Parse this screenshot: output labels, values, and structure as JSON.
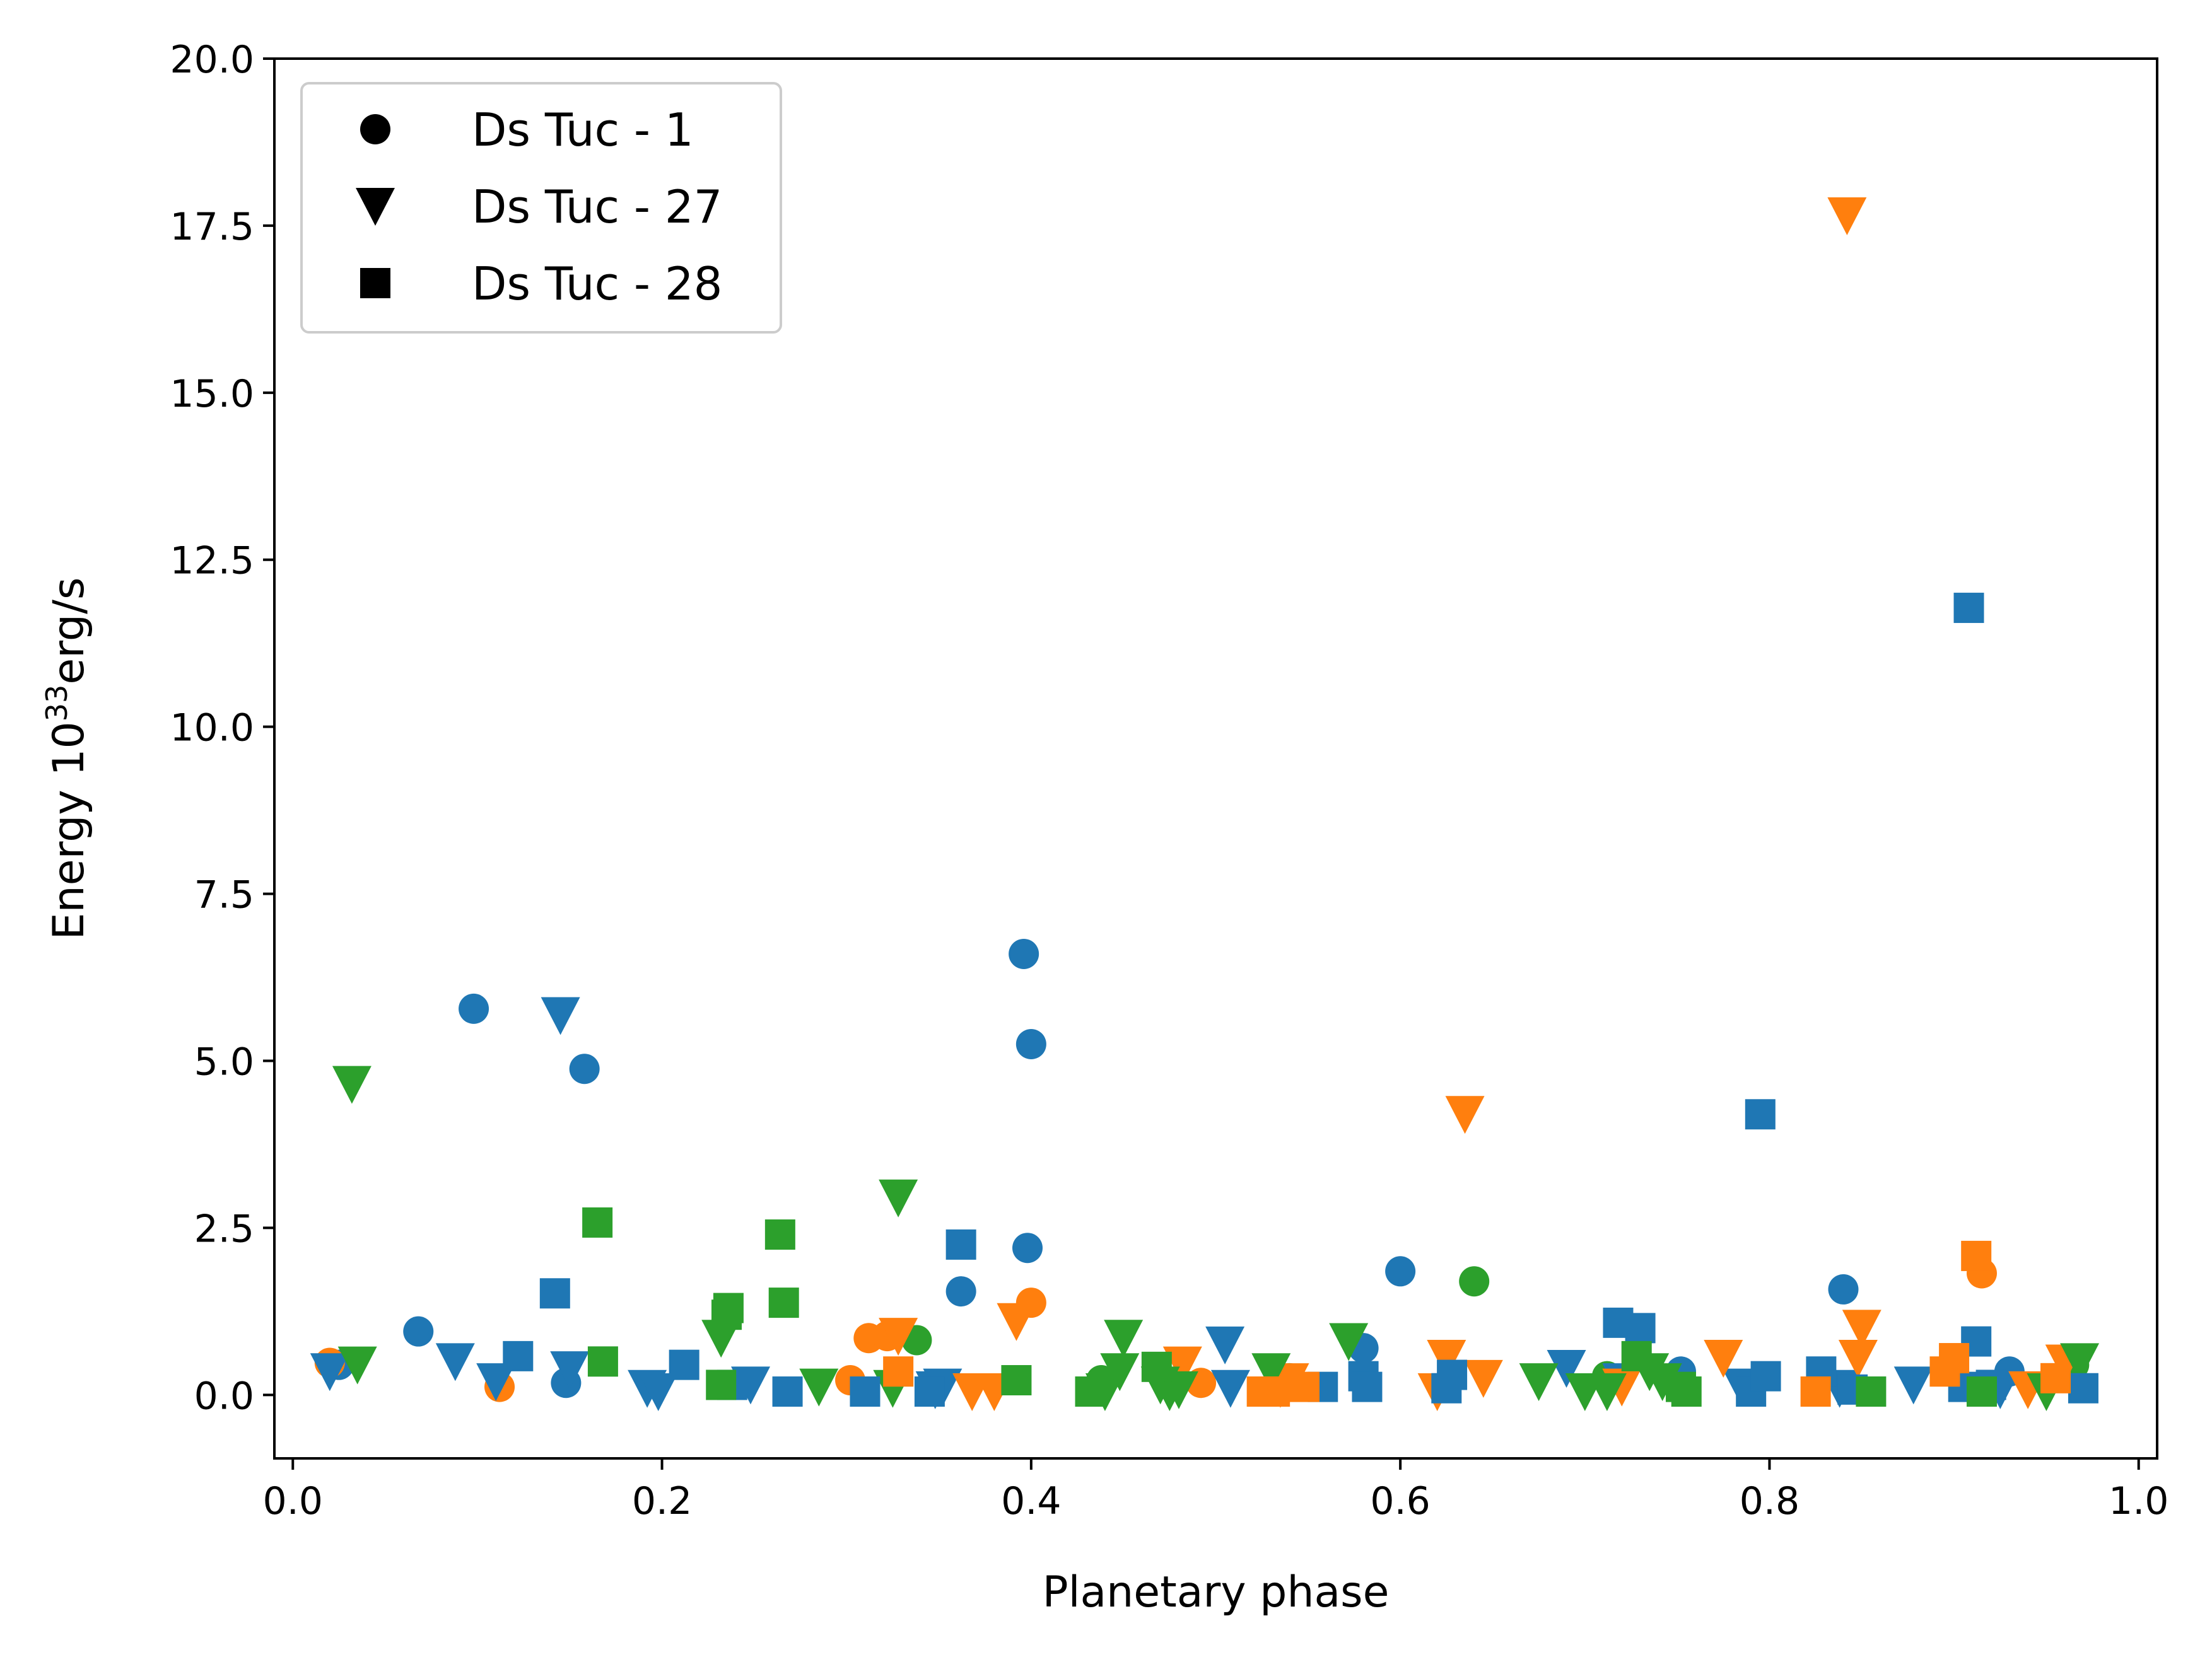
{
  "chart_data": {
    "type": "scatter",
    "title": "",
    "xlabel": "Planetary phase",
    "ylabel_prefix": "Energy 10",
    "ylabel_exponent": "33",
    "ylabel_suffix": "erg/s",
    "xlim": [
      -0.01,
      1.01
    ],
    "ylim": [
      -0.95,
      20.0
    ],
    "xticks": [
      0.0,
      0.2,
      0.4,
      0.6,
      0.8,
      1.0
    ],
    "xtick_labels": [
      "0.0",
      "0.2",
      "0.4",
      "0.6",
      "0.8",
      "1.0"
    ],
    "yticks": [
      0.0,
      2.5,
      5.0,
      7.5,
      10.0,
      12.5,
      15.0,
      17.5,
      20.0
    ],
    "ytick_labels": [
      "0.0",
      "2.5",
      "5.0",
      "7.5",
      "10.0",
      "12.5",
      "15.0",
      "17.5",
      "20.0"
    ],
    "grid": false,
    "legend_position": "top-left",
    "legend": [
      {
        "label": "Ds Tuc - 1",
        "marker": "circle"
      },
      {
        "label": "Ds Tuc - 27",
        "marker": "triangle-down"
      },
      {
        "label": "Ds Tuc - 28",
        "marker": "square"
      }
    ],
    "colors": {
      "blue": "#1f77b4",
      "orange": "#ff7f0e",
      "green": "#2ca02c"
    },
    "series": [
      {
        "name": "Ds Tuc - 1 (blue)",
        "marker": "circle",
        "color": "blue",
        "points": [
          [
            0.025,
            0.45
          ],
          [
            0.068,
            0.95
          ],
          [
            0.098,
            5.78
          ],
          [
            0.148,
            0.18
          ],
          [
            0.158,
            4.88
          ],
          [
            0.362,
            1.55
          ],
          [
            0.396,
            6.6
          ],
          [
            0.398,
            2.2
          ],
          [
            0.4,
            5.25
          ],
          [
            0.58,
            0.7
          ],
          [
            0.6,
            1.85
          ],
          [
            0.752,
            0.35
          ],
          [
            0.84,
            1.58
          ],
          [
            0.93,
            0.35
          ]
        ]
      },
      {
        "name": "Ds Tuc - 1 (orange)",
        "marker": "circle",
        "color": "orange",
        "points": [
          [
            0.02,
            0.48
          ],
          [
            0.112,
            0.12
          ],
          [
            0.302,
            0.22
          ],
          [
            0.312,
            0.85
          ],
          [
            0.322,
            0.88
          ],
          [
            0.4,
            1.38
          ],
          [
            0.492,
            0.18
          ],
          [
            0.915,
            1.82
          ]
        ]
      },
      {
        "name": "Ds Tuc - 1 (green)",
        "marker": "circle",
        "color": "green",
        "points": [
          [
            0.338,
            0.82
          ],
          [
            0.438,
            0.22
          ],
          [
            0.54,
            0.25
          ],
          [
            0.64,
            1.7
          ],
          [
            0.712,
            0.28
          ],
          [
            0.965,
            0.45
          ]
        ]
      },
      {
        "name": "Ds Tuc - 27 (blue)",
        "marker": "triangle-down",
        "color": "blue",
        "points": [
          [
            0.02,
            0.35
          ],
          [
            0.088,
            0.5
          ],
          [
            0.11,
            0.2
          ],
          [
            0.145,
            5.68
          ],
          [
            0.15,
            0.38
          ],
          [
            0.192,
            0.1
          ],
          [
            0.198,
            0.05
          ],
          [
            0.248,
            0.15
          ],
          [
            0.348,
            0.08
          ],
          [
            0.352,
            0.12
          ],
          [
            0.505,
            0.75
          ],
          [
            0.508,
            0.1
          ],
          [
            0.69,
            0.4
          ],
          [
            0.72,
            0.2
          ],
          [
            0.785,
            0.12
          ],
          [
            0.838,
            0.1
          ],
          [
            0.878,
            0.15
          ],
          [
            0.925,
            0.08
          ]
        ]
      },
      {
        "name": "Ds Tuc - 27 (orange)",
        "marker": "triangle-down",
        "color": "orange",
        "points": [
          [
            0.328,
            0.88
          ],
          [
            0.368,
            0.05
          ],
          [
            0.38,
            0.05
          ],
          [
            0.392,
            1.1
          ],
          [
            0.482,
            0.45
          ],
          [
            0.535,
            0.1
          ],
          [
            0.54,
            0.2
          ],
          [
            0.62,
            0.05
          ],
          [
            0.625,
            0.55
          ],
          [
            0.635,
            4.2
          ],
          [
            0.645,
            0.25
          ],
          [
            0.72,
            0.12
          ],
          [
            0.775,
            0.55
          ],
          [
            0.842,
            17.65
          ],
          [
            0.848,
            0.55
          ],
          [
            0.85,
            1.0
          ],
          [
            0.94,
            0.08
          ],
          [
            0.96,
            0.48
          ]
        ]
      },
      {
        "name": "Ds Tuc - 27 (green)",
        "marker": "triangle-down",
        "color": "green",
        "points": [
          [
            0.032,
            4.65
          ],
          [
            0.035,
            0.45
          ],
          [
            0.232,
            0.85
          ],
          [
            0.285,
            0.12
          ],
          [
            0.325,
            0.1
          ],
          [
            0.328,
            2.95
          ],
          [
            0.44,
            0.05
          ],
          [
            0.448,
            0.35
          ],
          [
            0.45,
            0.85
          ],
          [
            0.47,
            0.15
          ],
          [
            0.475,
            0.05
          ],
          [
            0.48,
            0.08
          ],
          [
            0.53,
            0.35
          ],
          [
            0.572,
            0.8
          ],
          [
            0.675,
            0.2
          ],
          [
            0.7,
            0.05
          ],
          [
            0.712,
            0.05
          ],
          [
            0.735,
            0.35
          ],
          [
            0.742,
            0.2
          ],
          [
            0.95,
            0.05
          ],
          [
            0.968,
            0.5
          ]
        ]
      },
      {
        "name": "Ds Tuc - 28 (blue)",
        "marker": "square",
        "color": "blue",
        "points": [
          [
            0.142,
            1.52
          ],
          [
            0.122,
            0.58
          ],
          [
            0.212,
            0.45
          ],
          [
            0.238,
            0.15
          ],
          [
            0.268,
            0.05
          ],
          [
            0.31,
            0.05
          ],
          [
            0.345,
            0.05
          ],
          [
            0.362,
            2.25
          ],
          [
            0.558,
            0.12
          ],
          [
            0.58,
            0.28
          ],
          [
            0.582,
            0.12
          ],
          [
            0.625,
            0.1
          ],
          [
            0.628,
            0.3
          ],
          [
            0.718,
            1.08
          ],
          [
            0.73,
            1.0
          ],
          [
            0.79,
            0.05
          ],
          [
            0.795,
            4.2
          ],
          [
            0.798,
            0.28
          ],
          [
            0.828,
            0.35
          ],
          [
            0.845,
            0.08
          ],
          [
            0.905,
            0.12
          ],
          [
            0.908,
            11.78
          ],
          [
            0.912,
            0.8
          ],
          [
            0.92,
            0.15
          ],
          [
            0.97,
            0.1
          ]
        ]
      },
      {
        "name": "Ds Tuc - 28 (orange)",
        "marker": "square",
        "color": "orange",
        "points": [
          [
            0.328,
            0.35
          ],
          [
            0.525,
            0.05
          ],
          [
            0.532,
            0.05
          ],
          [
            0.548,
            0.12
          ],
          [
            0.825,
            0.05
          ],
          [
            0.895,
            0.35
          ],
          [
            0.9,
            0.55
          ],
          [
            0.912,
            2.08
          ],
          [
            0.955,
            0.25
          ]
        ]
      },
      {
        "name": "Ds Tuc - 28 (green)",
        "marker": "square",
        "color": "green",
        "points": [
          [
            0.165,
            2.58
          ],
          [
            0.168,
            0.5
          ],
          [
            0.232,
            0.15
          ],
          [
            0.235,
            1.2
          ],
          [
            0.236,
            1.3
          ],
          [
            0.264,
            2.4
          ],
          [
            0.266,
            1.38
          ],
          [
            0.392,
            0.22
          ],
          [
            0.432,
            0.05
          ],
          [
            0.468,
            0.42
          ],
          [
            0.728,
            0.58
          ],
          [
            0.752,
            0.12
          ],
          [
            0.755,
            0.05
          ],
          [
            0.855,
            0.05
          ],
          [
            0.915,
            0.05
          ]
        ]
      }
    ]
  }
}
